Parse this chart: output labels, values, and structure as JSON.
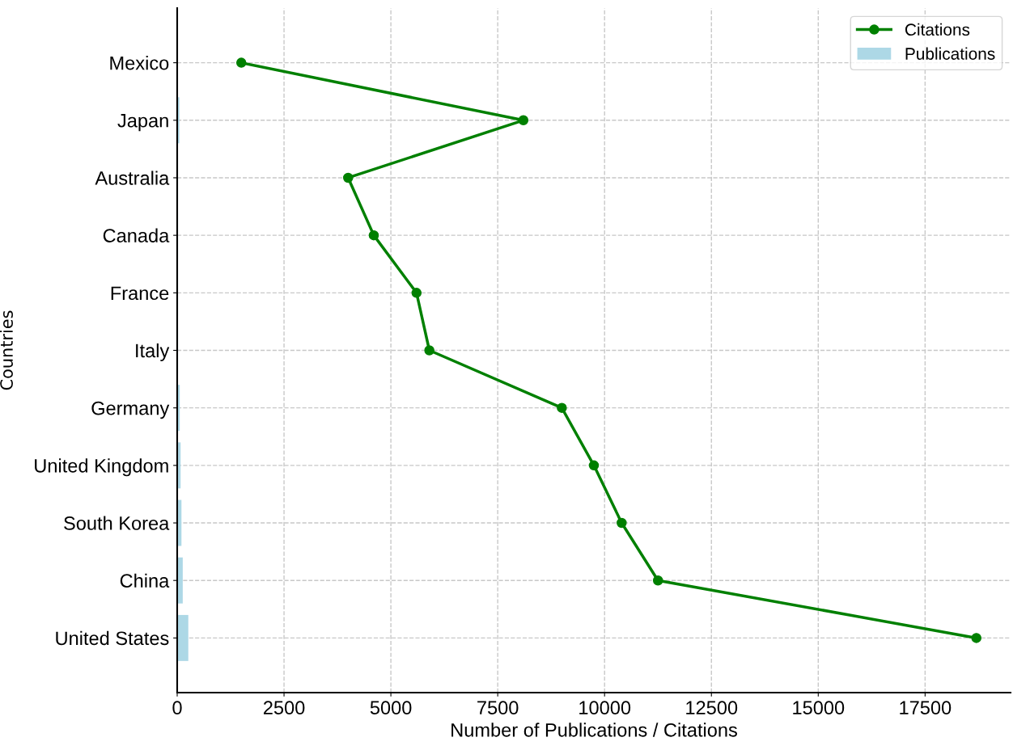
{
  "chart_data": {
    "type": "bar",
    "orientation": "horizontal",
    "xlabel": "Number of Publications / Citations",
    "ylabel": "Countries",
    "categories": [
      "Mexico",
      "Japan",
      "Australia",
      "Canada",
      "France",
      "Italy",
      "Germany",
      "United Kingdom",
      "South Korea",
      "China",
      "United States"
    ],
    "series": [
      {
        "name": "Publications",
        "color": "#add8e6",
        "values": [
          10,
          50,
          20,
          20,
          20,
          20,
          60,
          80,
          100,
          130,
          260
        ]
      },
      {
        "name": "Citations",
        "type": "line",
        "color": "#008000",
        "values": [
          1500,
          8100,
          4000,
          4600,
          5600,
          5900,
          9000,
          9750,
          10400,
          11250,
          18700
        ]
      }
    ],
    "xlim": [
      0,
      19500
    ],
    "xticks": [
      0,
      2500,
      5000,
      7500,
      10000,
      12500,
      15000,
      17500
    ],
    "grid": true,
    "legend": "top right",
    "marker": "circle"
  }
}
